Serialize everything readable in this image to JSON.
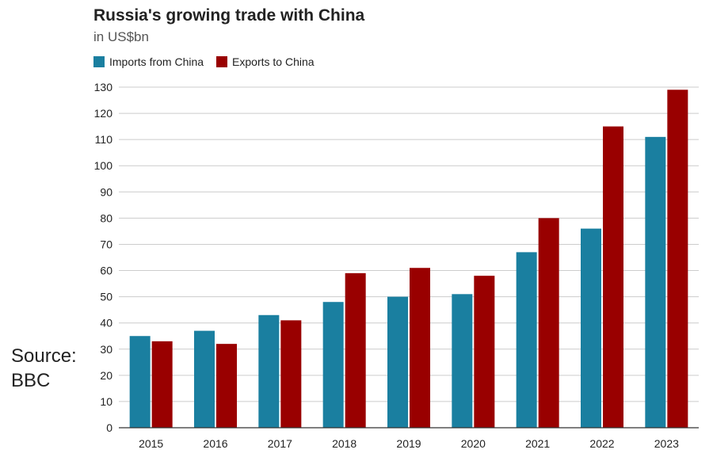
{
  "chart_data": {
    "type": "bar",
    "title": "Russia's growing trade with China",
    "subtitle": "in US$bn",
    "categories": [
      "2015",
      "2016",
      "2017",
      "2018",
      "2019",
      "2020",
      "2021",
      "2022",
      "2023"
    ],
    "series": [
      {
        "name": "Imports from China",
        "color": "#1a7fa0",
        "values": [
          35,
          37,
          43,
          48,
          50,
          51,
          67,
          76,
          111
        ]
      },
      {
        "name": "Exports to China",
        "color": "#990000",
        "values": [
          33,
          32,
          41,
          59,
          61,
          58,
          80,
          115,
          129
        ]
      }
    ],
    "ylim": [
      0,
      130
    ],
    "yticks": [
      0,
      10,
      20,
      30,
      40,
      50,
      60,
      70,
      80,
      90,
      100,
      110,
      120,
      130
    ],
    "grid": true,
    "legend_position": "top-left"
  },
  "source": {
    "line1": "Source:",
    "line2": "BBC"
  }
}
